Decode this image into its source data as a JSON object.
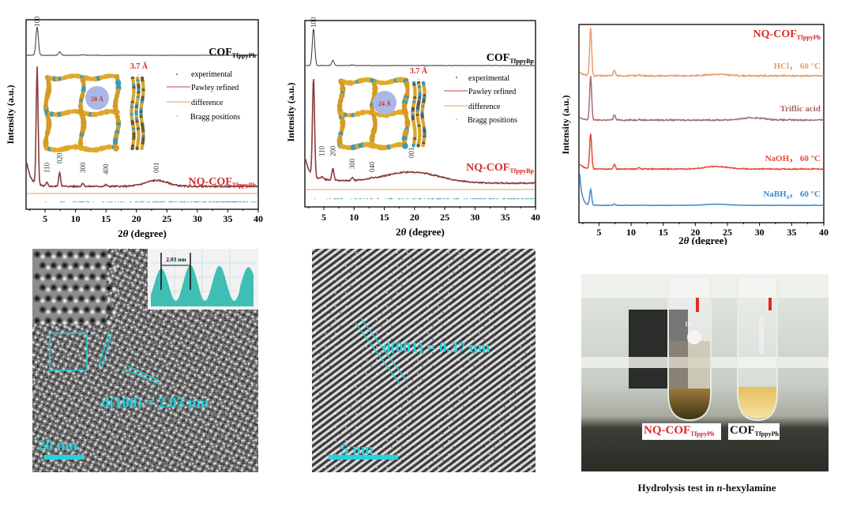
{
  "colors": {
    "cof": "#333333",
    "nq_fit": "#8b3a3a",
    "nq_label": "#d42a2a",
    "difference": "#e2a060",
    "bragg": "#5aa6b8",
    "hcl": "#ec9a66",
    "triflic": "#a86a6a",
    "naoh": "#e24a30",
    "nabh4": "#3a8ad6",
    "tem_cyan": "#22d3e0",
    "pore": "#aab8e6",
    "profile_fill": "#3fbfb4"
  },
  "chart_data": [
    {
      "type": "line",
      "title": "",
      "xlabel": "2θ (degree)",
      "ylabel": "Intensity (a.u.)",
      "xlim": [
        2,
        40
      ],
      "xticks": [
        5,
        10,
        15,
        20,
        25,
        30,
        35,
        40
      ],
      "series": [
        {
          "name": "COF",
          "sub": "TfppyPh",
          "peaks": [
            [
              3.7,
              1.0
            ],
            [
              7.4,
              0.12
            ],
            [
              11.2,
              0.02
            ]
          ],
          "baseline": 0
        },
        {
          "name": "NQ-COF",
          "sub": "TfppyPh",
          "peaks": [
            [
              3.7,
              1.0
            ],
            [
              5.3,
              0.03
            ],
            [
              7.4,
              0.12
            ],
            [
              11.2,
              0.03
            ],
            [
              15.0,
              0.015
            ],
            [
              23.3,
              0.05
            ]
          ],
          "baseline": 0
        }
      ],
      "reflections": [
        {
          "hkl": "100",
          "x": 3.7
        },
        {
          "hkl": "110",
          "x": 5.3
        },
        {
          "hkl": "020",
          "x": 7.4
        },
        {
          "hkl": "300",
          "x": 11.2
        },
        {
          "hkl": "400",
          "x": 15.0
        },
        {
          "hkl": "001",
          "x": 23.3
        }
      ],
      "legend": [
        "experimental",
        "Pawley refined",
        "difference",
        "Bragg positions"
      ],
      "legend_position": "top-right",
      "inset": {
        "pore": "20 Å",
        "stacking": "3.7 Å"
      }
    },
    {
      "type": "line",
      "title": "",
      "xlabel": "2θ (degree)",
      "ylabel": "Intensity (a.u.)",
      "xlim": [
        2,
        40
      ],
      "xticks": [
        5,
        10,
        15,
        20,
        25,
        30,
        35,
        40
      ],
      "series": [
        {
          "name": "COF",
          "sub": "TfppyBp",
          "peaks": [
            [
              3.3,
              1.0
            ],
            [
              6.5,
              0.14
            ],
            [
              9.7,
              0.02
            ]
          ],
          "baseline": 0
        },
        {
          "name": "NQ-COF",
          "sub": "TfppyBp",
          "peaks": [
            [
              3.3,
              1.0
            ],
            [
              4.7,
              0.03
            ],
            [
              6.5,
              0.12
            ],
            [
              9.7,
              0.03
            ],
            [
              13.0,
              0.01
            ],
            [
              19.5,
              0.11
            ]
          ],
          "baseline": 0
        }
      ],
      "reflections": [
        {
          "hkl": "100",
          "x": 3.3
        },
        {
          "hkl": "110",
          "x": 4.7
        },
        {
          "hkl": "200",
          "x": 6.5
        },
        {
          "hkl": "300",
          "x": 9.7
        },
        {
          "hkl": "040",
          "x": 13.0
        },
        {
          "hkl": "001",
          "x": 19.5
        }
      ],
      "legend": [
        "experimental",
        "Pawley refined",
        "difference",
        "Bragg positions"
      ],
      "legend_position": "top-right",
      "inset": {
        "pore": "24 Å",
        "stacking": "3.7 Å"
      }
    },
    {
      "type": "line",
      "title": "NQ-COF",
      "title_sub": "TfppyPh",
      "xlabel": "2θ (degree)",
      "ylabel": "Intensity (a.u.)",
      "xlim": [
        2,
        40
      ],
      "xticks": [
        5,
        10,
        15,
        20,
        25,
        30,
        35,
        40
      ],
      "series": [
        {
          "name": "HCl， 60 °C",
          "peaks": [
            [
              3.7,
              1.0
            ],
            [
              7.4,
              0.12
            ],
            [
              11.2,
              0.03
            ],
            [
              23.3,
              0.03
            ]
          ]
        },
        {
          "name": "Triflic acid",
          "peaks": [
            [
              3.7,
              1.0
            ],
            [
              7.4,
              0.12
            ],
            [
              11.2,
              0.02
            ],
            [
              29.0,
              0.05
            ]
          ]
        },
        {
          "name": "NaOH， 60 °C",
          "peaks": [
            [
              3.7,
              1.0
            ],
            [
              7.4,
              0.12
            ],
            [
              11.2,
              0.03
            ],
            [
              23.3,
              0.07
            ]
          ]
        },
        {
          "name": "NaBH",
          "sub": "4",
          "suffix": "， 60 °C",
          "peaks": [
            [
              3.7,
              1.0
            ],
            [
              7.4,
              0.08
            ],
            [
              23.3,
              0.07
            ]
          ]
        }
      ]
    }
  ],
  "tem1": {
    "annotation": "d(100) = 2.03 nm",
    "scale_bar": "20 nm",
    "profile_label": "2.03 nm"
  },
  "tem2": {
    "annotation": "d(001) = 0.37 nm",
    "scale_bar": "5 nm"
  },
  "photo": {
    "label_nq": "NQ-COF",
    "label_nq_sub": "TfppyPh",
    "label_cof": "COF",
    "label_cof_sub": "TfppyPh",
    "tube_number": "10",
    "caption_pre": "Hydrolysis test in ",
    "caption_italic": "n",
    "caption_post": "-hexylamine"
  }
}
